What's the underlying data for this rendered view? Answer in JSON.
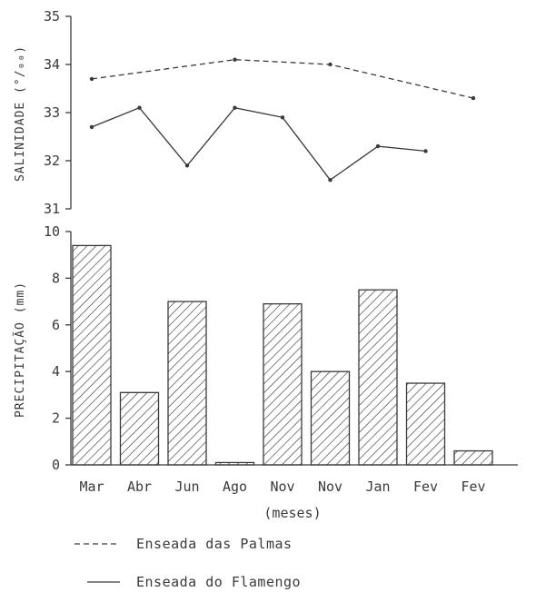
{
  "chart_data": [
    {
      "type": "line",
      "ylabel": "SALINIDADE (°/₀₀)",
      "ylim": [
        31,
        35
      ],
      "yticks": [
        "31",
        "32",
        "33",
        "34",
        "35"
      ],
      "categories": [
        "Mar",
        "Abr",
        "Jun",
        "Ago",
        "Nov",
        "Nov",
        "Jan",
        "Fev",
        "Fev"
      ],
      "series": [
        {
          "name": "Enseada das Palmas",
          "style": "dashed",
          "points": [
            {
              "i": 0,
              "y": 33.7
            },
            {
              "i": 3,
              "y": 34.1
            },
            {
              "i": 5,
              "y": 34.0
            },
            {
              "i": 8,
              "y": 33.3
            }
          ]
        },
        {
          "name": "Enseada do Flamengo",
          "style": "solid",
          "points": [
            {
              "i": 0,
              "y": 32.7
            },
            {
              "i": 1,
              "y": 33.1
            },
            {
              "i": 2,
              "y": 31.9
            },
            {
              "i": 3,
              "y": 33.1
            },
            {
              "i": 4,
              "y": 32.9
            },
            {
              "i": 5,
              "y": 31.6
            },
            {
              "i": 6,
              "y": 32.3
            },
            {
              "i": 7,
              "y": 32.2
            }
          ]
        }
      ]
    },
    {
      "type": "bar",
      "ylabel": "PRECIPITAÇÃO (mm)",
      "ylim": [
        0,
        10
      ],
      "yticks": [
        "0",
        "2",
        "4",
        "6",
        "8",
        "10"
      ],
      "categories": [
        "Mar",
        "Abr",
        "Jun",
        "Ago",
        "Nov",
        "Nov",
        "Jan",
        "Fev",
        "Fev"
      ],
      "values": [
        9.4,
        3.1,
        7.0,
        0.1,
        6.9,
        4.0,
        7.5,
        3.5,
        0.6
      ],
      "fill": "hatched",
      "xlabel": "(meses)"
    }
  ],
  "legend": [
    {
      "label": "Enseada das Palmas",
      "style": "dashed"
    },
    {
      "label": "Enseada do Flamengo",
      "style": "solid"
    }
  ],
  "colors": {
    "ink": "#3a3a3a",
    "background": "#ffffff"
  }
}
